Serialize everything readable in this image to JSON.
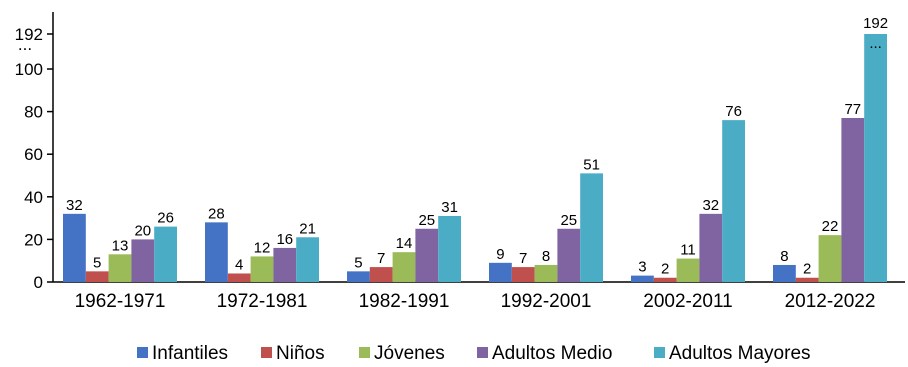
{
  "chart_data": {
    "type": "bar",
    "title": "",
    "xlabel": "",
    "ylabel": "",
    "categories": [
      "1962-1971",
      "1972-1981",
      "1982-1991",
      "1992-2001",
      "2002-2011",
      "2012-2022"
    ],
    "series": [
      {
        "name": "Infantiles",
        "color": "#4472C4",
        "values": [
          32,
          28,
          5,
          9,
          3,
          8
        ]
      },
      {
        "name": "Niños",
        "color": "#C0504D",
        "values": [
          5,
          4,
          7,
          7,
          2,
          2
        ]
      },
      {
        "name": "Jóvenes",
        "color": "#9BBB59",
        "values": [
          13,
          12,
          14,
          8,
          11,
          22
        ]
      },
      {
        "name": "Adultos Medio",
        "color": "#8064A2",
        "values": [
          20,
          16,
          25,
          25,
          32,
          77
        ]
      },
      {
        "name": "Adultos Mayores",
        "color": "#4BACC6",
        "values": [
          26,
          21,
          31,
          51,
          76,
          192
        ]
      }
    ],
    "y_ticks": [
      "0",
      "20",
      "40",
      "60",
      "80",
      "100",
      "192"
    ],
    "y_break_mark": "...",
    "ylim": [
      0,
      192
    ],
    "axis_break": {
      "from": 100,
      "to": 192
    },
    "grid": false,
    "legend_position": "bottom"
  }
}
